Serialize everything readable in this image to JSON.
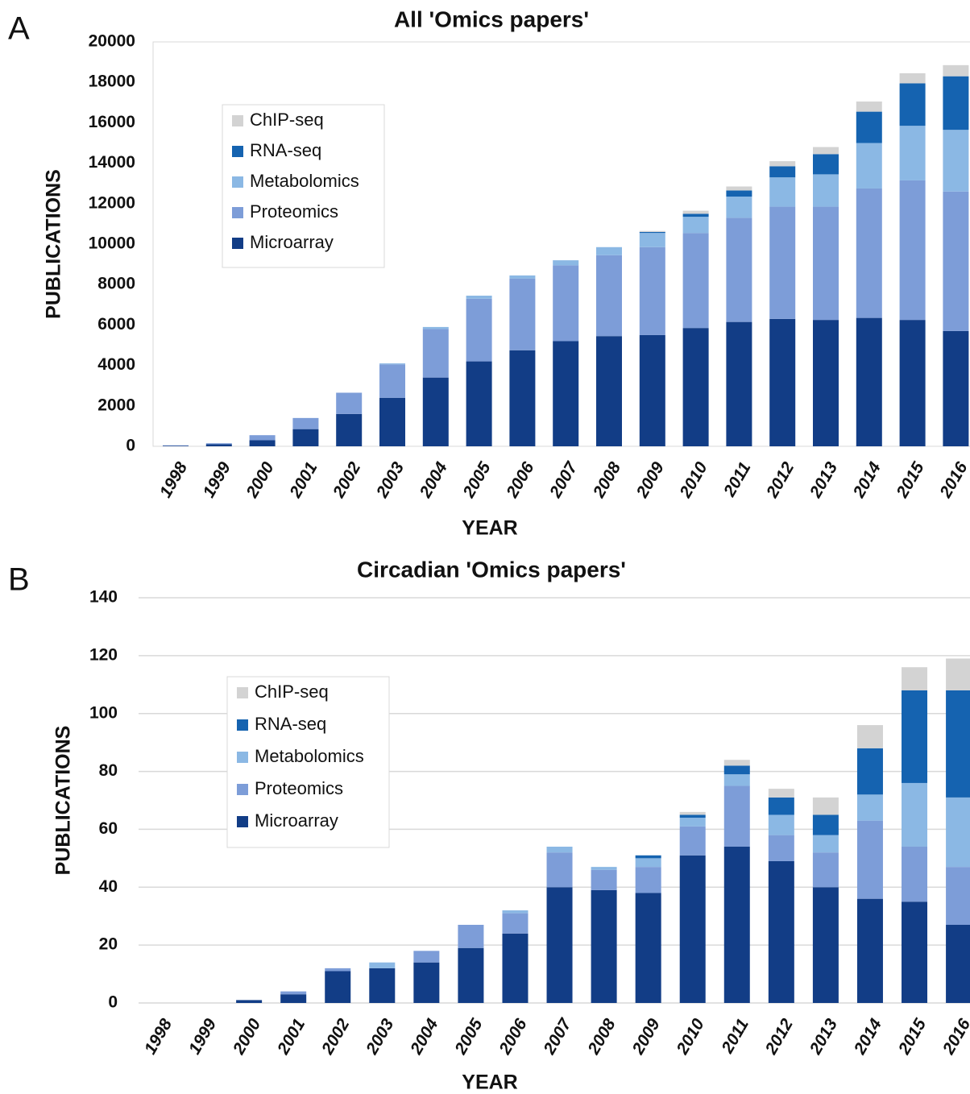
{
  "chart_data": [
    {
      "type": "stacked_bar",
      "panel_label": "A",
      "title": "All 'Omics papers'",
      "y_label": "PUBLICATIONS",
      "x_label": "YEAR",
      "categories": [
        "1998",
        "1999",
        "2000",
        "2001",
        "2002",
        "2003",
        "2004",
        "2005",
        "2006",
        "2007",
        "2008",
        "2009",
        "2010",
        "2011",
        "2012",
        "2013",
        "2014",
        "2015",
        "2016"
      ],
      "series": [
        {
          "name": "Microarray",
          "color": "#123d86",
          "values": [
            30,
            100,
            300,
            850,
            1600,
            2400,
            3400,
            4200,
            4750,
            5200,
            5450,
            5500,
            5850,
            6150,
            6300,
            6250,
            6350,
            6250,
            5700
          ]
        },
        {
          "name": "Proteomics",
          "color": "#7d9dd8",
          "values": [
            20,
            50,
            250,
            550,
            1050,
            1650,
            2400,
            3100,
            3550,
            3750,
            4000,
            4350,
            4700,
            5150,
            5550,
            5600,
            6400,
            6900,
            6900
          ]
        },
        {
          "name": "Metabolomics",
          "color": "#8bb8e4",
          "values": [
            0,
            0,
            0,
            0,
            0,
            50,
            100,
            150,
            150,
            250,
            400,
            700,
            800,
            1050,
            1450,
            1600,
            2250,
            2700,
            3050
          ]
        },
        {
          "name": "RNA-seq",
          "color": "#1563b0",
          "values": [
            0,
            0,
            0,
            0,
            0,
            0,
            0,
            0,
            0,
            0,
            0,
            50,
            150,
            300,
            550,
            1000,
            1550,
            2100,
            2650
          ]
        },
        {
          "name": "ChIP-seq",
          "color": "#d3d3d3",
          "values": [
            0,
            0,
            0,
            0,
            0,
            0,
            0,
            0,
            0,
            0,
            0,
            50,
            150,
            200,
            250,
            350,
            500,
            500,
            550
          ]
        }
      ],
      "ylim": [
        0,
        20000
      ],
      "yticks": [
        0,
        2000,
        4000,
        6000,
        8000,
        10000,
        12000,
        14000,
        16000,
        18000,
        20000
      ],
      "grid": false,
      "legend": "upper left"
    },
    {
      "type": "stacked_bar",
      "panel_label": "B",
      "title": "Circadian 'Omics papers'",
      "y_label": "PUBLICATIONS",
      "x_label": "YEAR",
      "categories": [
        "1998",
        "1999",
        "2000",
        "2001",
        "2002",
        "2003",
        "2004",
        "2005",
        "2006",
        "2007",
        "2008",
        "2009",
        "2010",
        "2011",
        "2012",
        "2013",
        "2014",
        "2015",
        "2016"
      ],
      "series": [
        {
          "name": "Microarray",
          "color": "#123d86",
          "values": [
            0,
            0,
            1,
            3,
            11,
            12,
            14,
            19,
            24,
            40,
            39,
            38,
            51,
            54,
            49,
            40,
            36,
            35,
            27
          ]
        },
        {
          "name": "Proteomics",
          "color": "#7d9dd8",
          "values": [
            0,
            0,
            0,
            1,
            1,
            0,
            4,
            8,
            7,
            12,
            7,
            9,
            10,
            21,
            9,
            12,
            27,
            19,
            20
          ]
        },
        {
          "name": "Metabolomics",
          "color": "#8bb8e4",
          "values": [
            0,
            0,
            0,
            0,
            0,
            2,
            0,
            0,
            1,
            2,
            1,
            3,
            3,
            4,
            7,
            6,
            9,
            22,
            24
          ]
        },
        {
          "name": "RNA-seq",
          "color": "#1563b0",
          "values": [
            0,
            0,
            0,
            0,
            0,
            0,
            0,
            0,
            0,
            0,
            0,
            1,
            1,
            3,
            6,
            7,
            16,
            32,
            37
          ]
        },
        {
          "name": "ChIP-seq",
          "color": "#d3d3d3",
          "values": [
            0,
            0,
            0,
            0,
            0,
            0,
            0,
            0,
            0,
            0,
            0,
            0,
            1,
            2,
            3,
            6,
            8,
            8,
            11
          ]
        }
      ],
      "ylim": [
        0,
        140
      ],
      "yticks": [
        0,
        20,
        40,
        60,
        80,
        100,
        120,
        140
      ],
      "grid": true,
      "legend": "upper left"
    }
  ]
}
